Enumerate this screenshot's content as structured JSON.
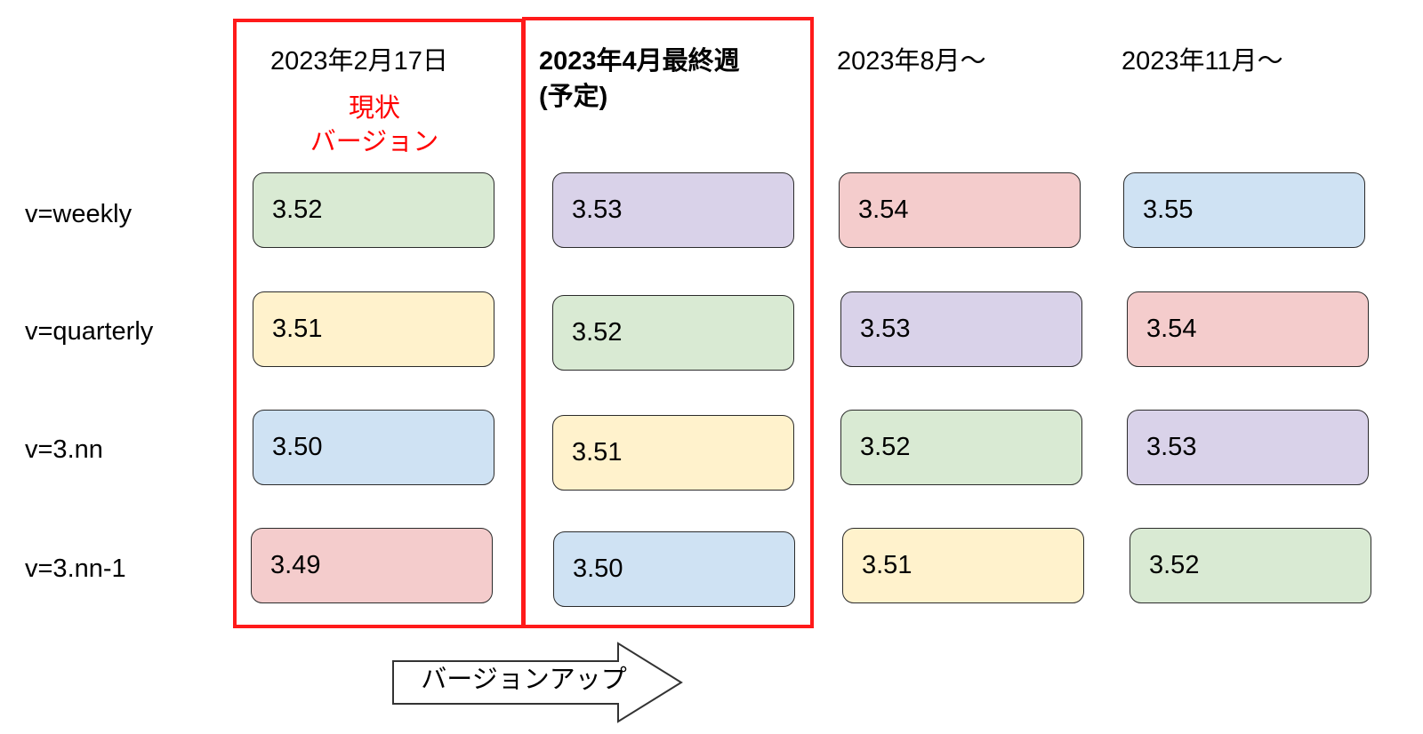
{
  "columns": [
    {
      "header": "2023年2月17日"
    },
    {
      "header": "2023年4月最終週",
      "header_line2": "(予定)"
    },
    {
      "header": "2023年8月〜"
    },
    {
      "header": "2023年11月〜"
    }
  ],
  "current_label": {
    "line1": "現状",
    "line2": "バージョン"
  },
  "rows": [
    {
      "label": "v=weekly",
      "values": [
        "3.52",
        "3.53",
        "3.54",
        "3.55"
      ]
    },
    {
      "label": "v=quarterly",
      "values": [
        "3.51",
        "3.52",
        "3.53",
        "3.54"
      ]
    },
    {
      "label": "v=3.nn",
      "values": [
        "3.50",
        "3.51",
        "3.52",
        "3.53"
      ]
    },
    {
      "label": "v=3.nn-1",
      "values": [
        "3.49",
        "3.50",
        "3.51",
        "3.52"
      ]
    }
  ],
  "arrow_label": "バージョンアップ",
  "colors": {
    "highlight": "#ff1a1a",
    "current_label": "#ff0000",
    "3.49": "#f4cccc",
    "3.50": "#cfe2f3",
    "3.51": "#fff2cc",
    "3.52": "#d9ead3",
    "3.53": "#d9d2e9",
    "3.54": "#f4cccc",
    "3.55": "#cfe2f3"
  }
}
